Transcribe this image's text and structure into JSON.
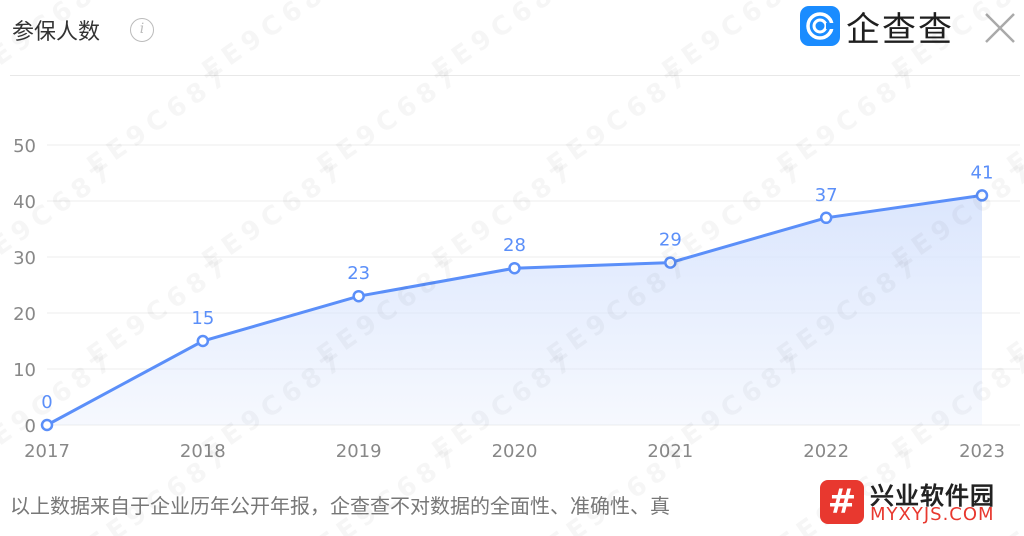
{
  "header": {
    "title": "参保人数",
    "info_icon": "info-icon",
    "logo_text": "企查查",
    "logo_icon": "qichacha-logo-icon",
    "close_icon": "close-icon"
  },
  "chart_data": {
    "type": "area",
    "categories": [
      "2017",
      "2018",
      "2019",
      "2020",
      "2021",
      "2022",
      "2023"
    ],
    "values": [
      0,
      15,
      23,
      28,
      29,
      37,
      41
    ],
    "data_labels": [
      "0",
      "15",
      "23",
      "28",
      "29",
      "37",
      "41"
    ],
    "y_ticks": [
      "0",
      "10",
      "20",
      "30",
      "40",
      "50"
    ],
    "ylim": [
      0,
      50
    ],
    "grid": true,
    "line_color": "#5b8ff9",
    "fill_color": "#dbe6fd"
  },
  "footer": {
    "disclaimer": "以上数据来自于企业历年公开年报，企查查不对数据的全面性、准确性、真"
  },
  "brand_badge": {
    "logo_glyph": "#",
    "name": "兴业软件园",
    "url": "MYXYJS.COM"
  },
  "watermark": {
    "text": "EE9C687"
  },
  "colors": {
    "accent": "#5b8ff9",
    "logo_blue": "#1a8cff",
    "brand_red": "#e8382f"
  }
}
